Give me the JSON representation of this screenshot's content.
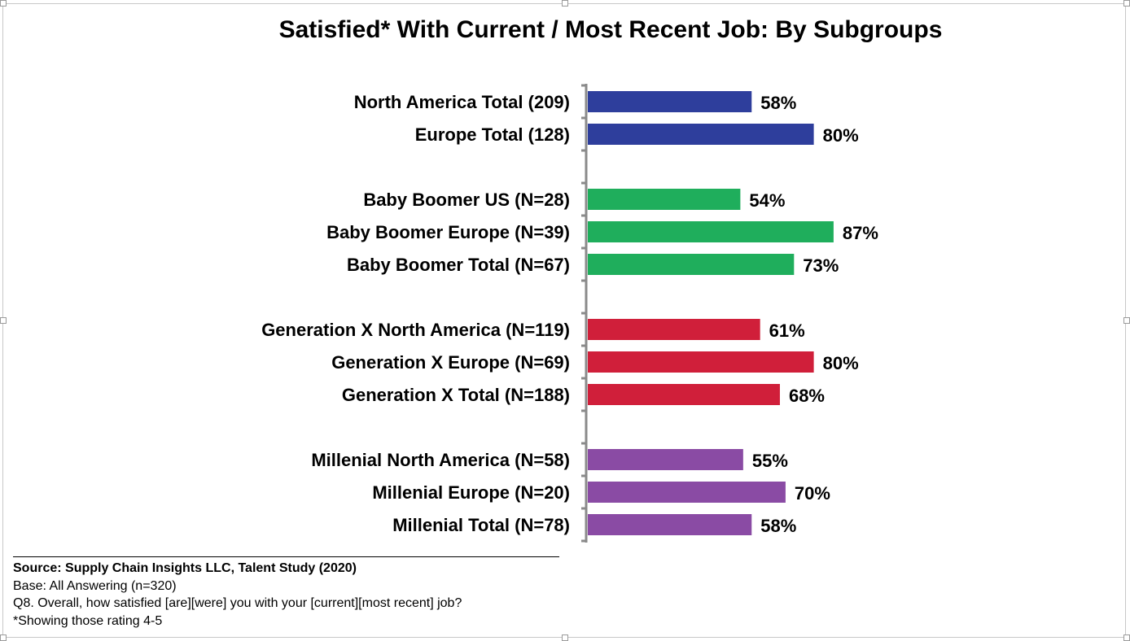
{
  "chart_data": {
    "type": "bar",
    "orientation": "horizontal",
    "title": "Satisfied* With Current / Most Recent Job: By Subgroups",
    "unit": "%",
    "xlim": [
      0,
      100
    ],
    "grid": false,
    "groups": [
      {
        "color": "#2E3E9C",
        "categories": [
          "North America Total (209)",
          "Europe Total (128)"
        ],
        "values": [
          58,
          80
        ],
        "labels": [
          "58%",
          "80%"
        ]
      },
      {
        "color": "#1FAE5C",
        "categories": [
          "Baby Boomer US (N=28)",
          "Baby Boomer Europe (N=39)",
          "Baby Boomer Total (N=67)"
        ],
        "values": [
          54,
          87,
          73
        ],
        "labels": [
          "54%",
          "87%",
          "73%"
        ]
      },
      {
        "color": "#D01F3A",
        "categories": [
          "Generation X North America (N=119)",
          "Generation X Europe (N=69)",
          "Generation X Total (N=188)"
        ],
        "values": [
          61,
          80,
          68
        ],
        "labels": [
          "61%",
          "80%",
          "68%"
        ]
      },
      {
        "color": "#8A4BA4",
        "categories": [
          "Millenial North America (N=58)",
          "Millenial Europe (N=20)",
          "Millenial Total (N=78)"
        ],
        "values": [
          55,
          70,
          58
        ],
        "labels": [
          "55%",
          "70%",
          "58%"
        ]
      }
    ]
  },
  "footer": {
    "source": "Source:  Supply Chain Insights LLC, Talent Study (2020)",
    "base": "Base: All Answering (n=320)",
    "question": "Q8. Overall, how satisfied [are][were] you with your [current][most recent] job?",
    "note": "*Showing those rating 4-5"
  }
}
